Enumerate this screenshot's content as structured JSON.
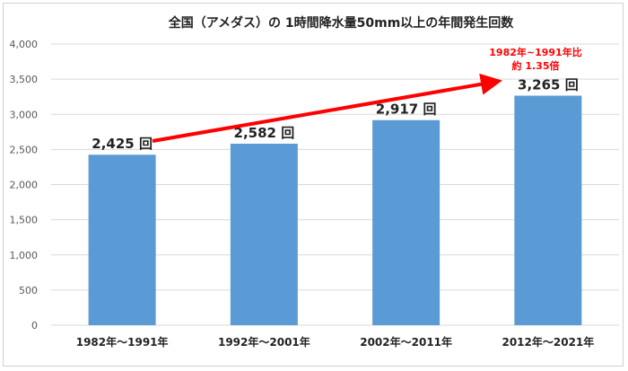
{
  "chart_data": {
    "type": "bar",
    "title": "全国（アメダス）の 1時間降水量50mm以上の年間発生回数",
    "categories": [
      "1982年～1991年",
      "1992年～2001年",
      "2002年～2011年",
      "2012年～2021年"
    ],
    "values": [
      2425,
      2582,
      2917,
      3265
    ],
    "data_labels": [
      "2,425 回",
      "2,582 回",
      "2,917 回",
      "3,265 回"
    ],
    "ylim": [
      0,
      4000
    ],
    "yticks": [
      0,
      500,
      1000,
      1500,
      2000,
      2500,
      3000,
      3500,
      4000
    ],
    "ytick_labels": [
      "0",
      "500",
      "1,000",
      "1,500",
      "2,000",
      "2,500",
      "3,000",
      "3,500",
      "4,000"
    ],
    "grid": true,
    "xlabel": "",
    "ylabel": "",
    "annotation": {
      "line1": "1982年~1991年比",
      "line2": "約 1.35倍",
      "color": "#ff0000"
    },
    "bar_color": "#5b9bd5"
  }
}
